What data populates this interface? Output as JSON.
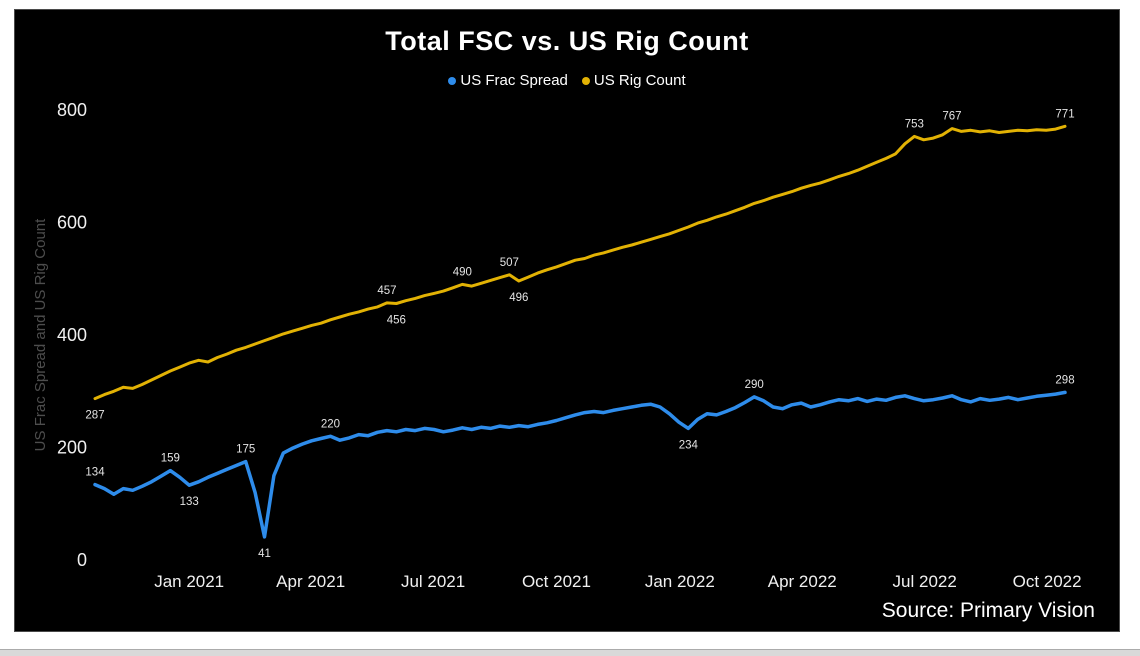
{
  "page": {
    "background": "#ffffff",
    "bottom_bar_color": "#d9d9d9"
  },
  "chart": {
    "title": "Total FSC vs. US Rig Count",
    "source": "Source: Primary Vision",
    "background": "#000000",
    "title_color": "#ffffff",
    "tick_color": "#f0f0f0",
    "data_label_color": "#e3e3e3",
    "axis_title_color": "#4d4d4d",
    "legend": [
      {
        "label": "US Frac Spread",
        "color": "#2e8ceb"
      },
      {
        "label": "US Rig Count",
        "color": "#e2b204"
      }
    ]
  },
  "chart_data": {
    "type": "line",
    "title": "Total FSC vs. US Rig Count",
    "ylabel": "US Frac Spread and US Rig Count",
    "xlabel": "",
    "ylim": [
      0,
      800
    ],
    "y_ticks": [
      0,
      200,
      400,
      600,
      800
    ],
    "x_ticks": [
      {
        "label": "Jan 2021",
        "pos": 10.0
      },
      {
        "label": "Apr 2021",
        "pos": 22.9
      },
      {
        "label": "Jul 2021",
        "pos": 35.9
      },
      {
        "label": "Oct 2021",
        "pos": 49.0
      },
      {
        "label": "Jan 2022",
        "pos": 62.1
      },
      {
        "label": "Apr 2022",
        "pos": 75.1
      },
      {
        "label": "Jul 2022",
        "pos": 88.1
      },
      {
        "label": "Oct 2022",
        "pos": 101.1
      }
    ],
    "grid": false,
    "legend_position": "top",
    "series": [
      {
        "name": "US Frac Spread",
        "color": "#2e8ceb",
        "width": 3.5,
        "values": [
          134,
          127,
          117,
          127,
          124,
          131,
          139,
          149,
          159,
          147,
          133,
          139,
          147,
          154,
          161,
          168,
          175,
          120,
          41,
          150,
          190,
          199,
          206,
          212,
          216,
          220,
          213,
          217,
          223,
          221,
          227,
          230,
          228,
          232,
          230,
          234,
          232,
          228,
          231,
          235,
          232,
          236,
          234,
          238,
          236,
          239,
          237,
          241,
          244,
          248,
          253,
          258,
          262,
          264,
          262,
          266,
          269,
          272,
          275,
          277,
          272,
          260,
          245,
          234,
          250,
          260,
          258,
          264,
          271,
          280,
          290,
          283,
          272,
          269,
          276,
          279,
          272,
          276,
          281,
          285,
          283,
          287,
          282,
          286,
          284,
          289,
          292,
          287,
          283,
          285,
          288,
          292,
          285,
          281,
          287,
          284,
          286,
          289,
          285,
          288,
          291,
          293,
          295,
          298
        ],
        "point_labels": [
          {
            "i": 0,
            "text": "134",
            "place": "above"
          },
          {
            "i": 8,
            "text": "159",
            "place": "above"
          },
          {
            "i": 10,
            "text": "133",
            "place": "below"
          },
          {
            "i": 16,
            "text": "175",
            "place": "above"
          },
          {
            "i": 18,
            "text": "41",
            "place": "below"
          },
          {
            "i": 25,
            "text": "220",
            "place": "above"
          },
          {
            "i": 63,
            "text": "234",
            "place": "below"
          },
          {
            "i": 70,
            "text": "290",
            "place": "above"
          },
          {
            "i": 103,
            "text": "298",
            "place": "above"
          }
        ]
      },
      {
        "name": "US Rig Count",
        "color": "#e2b204",
        "width": 3,
        "values": [
          287,
          294,
          300,
          307,
          305,
          312,
          320,
          328,
          336,
          343,
          350,
          355,
          352,
          360,
          366,
          373,
          378,
          384,
          390,
          396,
          402,
          407,
          412,
          417,
          421,
          427,
          432,
          437,
          441,
          446,
          450,
          457,
          456,
          461,
          465,
          470,
          474,
          478,
          484,
          490,
          487,
          492,
          497,
          502,
          507,
          496,
          503,
          510,
          516,
          521,
          527,
          533,
          536,
          542,
          546,
          551,
          556,
          560,
          565,
          570,
          575,
          580,
          586,
          592,
          599,
          604,
          610,
          615,
          621,
          627,
          634,
          639,
          645,
          650,
          655,
          661,
          666,
          670,
          676,
          682,
          687,
          693,
          700,
          707,
          714,
          722,
          740,
          753,
          747,
          750,
          756,
          767,
          762,
          764,
          761,
          763,
          760,
          762,
          764,
          763,
          765,
          764,
          766,
          771
        ],
        "point_labels": [
          {
            "i": 0,
            "text": "287",
            "place": "below"
          },
          {
            "i": 31,
            "text": "457",
            "place": "above"
          },
          {
            "i": 32,
            "text": "456",
            "place": "below"
          },
          {
            "i": 39,
            "text": "490",
            "place": "above"
          },
          {
            "i": 44,
            "text": "507",
            "place": "above"
          },
          {
            "i": 45,
            "text": "496",
            "place": "below"
          },
          {
            "i": 87,
            "text": "753",
            "place": "above"
          },
          {
            "i": 91,
            "text": "767",
            "place": "above"
          },
          {
            "i": 103,
            "text": "771",
            "place": "above"
          }
        ]
      }
    ]
  }
}
